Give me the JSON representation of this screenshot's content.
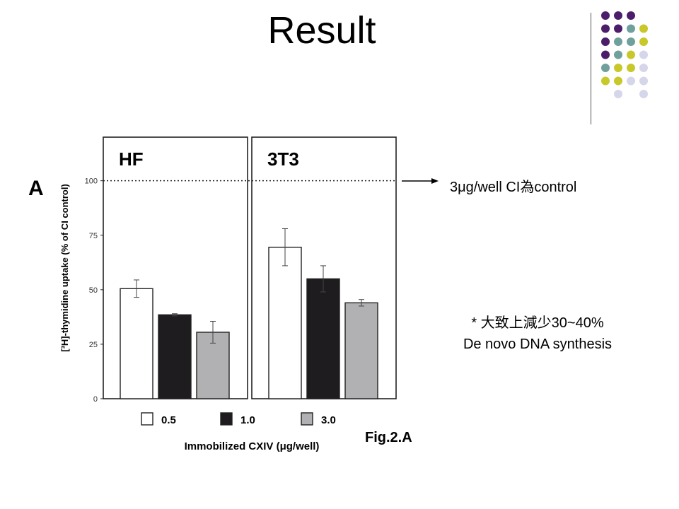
{
  "slide": {
    "title": "Result",
    "note_control": "3μg/well CI為control",
    "note_decrease_line1": "* 大致上減少30~40%",
    "note_decrease_line2": "De novo DNA synthesis",
    "figure_caption": "Fig.2.A"
  },
  "decor": {
    "dot_colors": {
      "purple": "#4b1d6b",
      "teal": "#6fa09c",
      "olive": "#c8c82a",
      "lavender": "#d6d6ea"
    }
  },
  "chart_data": {
    "type": "bar",
    "panel_letter": "A",
    "panels": [
      {
        "name": "HF",
        "categories": [
          "0.5",
          "1.0",
          "3.0"
        ],
        "values": [
          50.5,
          38.5,
          30.5
        ],
        "errors": [
          4,
          0.5,
          5
        ]
      },
      {
        "name": "3T3",
        "categories": [
          "0.5",
          "1.0",
          "3.0"
        ],
        "values": [
          69.5,
          55,
          44
        ],
        "errors": [
          8.5,
          6,
          1.5
        ]
      }
    ],
    "bar_colors": [
      "#ffffff",
      "#1e1c1e",
      "#b1b1b3"
    ],
    "legend": [
      "0.5",
      "1.0",
      "3.0"
    ],
    "xlabel": "Immobilized CXIV (μg/well)",
    "ylabel": "[³H]-thymidine uptake (% of CI control)",
    "yticks": [
      0,
      25,
      50,
      75,
      100
    ],
    "ylim": [
      0,
      120
    ],
    "reference_line": 100
  }
}
